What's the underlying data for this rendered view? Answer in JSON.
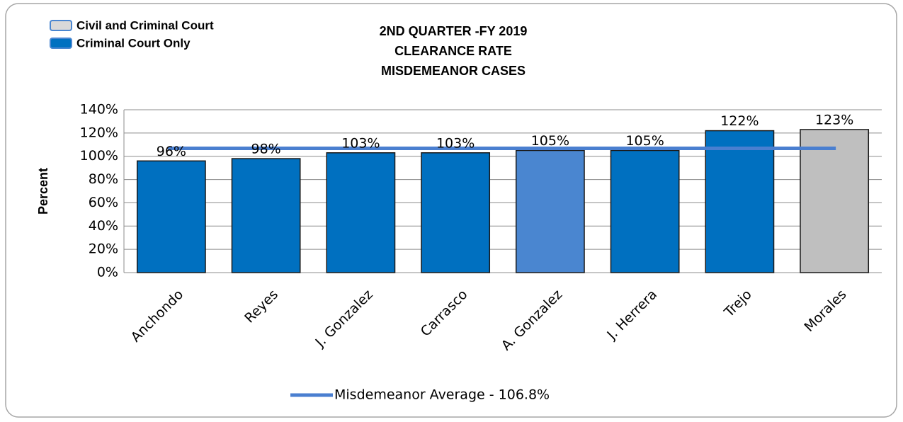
{
  "chart_data": {
    "type": "bar",
    "title": [
      "2ND QUARTER -FY 2019",
      "CLEARANCE RATE",
      "MISDEMEANOR CASES"
    ],
    "y_label": "Percent",
    "categories": [
      "Anchondo",
      "Reyes",
      "J. Gonzalez",
      "Carrasco",
      "A. Gonzalez",
      "J. Herrera",
      "Trejo",
      "Morales"
    ],
    "values": [
      96,
      98,
      103,
      103,
      105,
      105,
      122,
      123
    ],
    "value_labels": [
      "96%",
      "98%",
      "103%",
      "103%",
      "105%",
      "105%",
      "122%",
      "123%"
    ],
    "colors": [
      "#0070c0",
      "#0070c0",
      "#0070c0",
      "#0070c0",
      "#4a86d0",
      "#0070c0",
      "#0070c0",
      "#bfbfbf"
    ],
    "legend": [
      {
        "name": "Civil and Criminal Court",
        "color": "#d9d9d9"
      },
      {
        "name": "Criminal Court Only",
        "color": "#0070c0"
      }
    ],
    "average": {
      "name": "Misdemeanor Average - 106.8%",
      "value": 106.8,
      "color": "#4a7fd0"
    },
    "ylim": [
      0,
      140
    ],
    "yticks": [
      {
        "value": 0,
        "label": "0%"
      },
      {
        "value": 20,
        "label": "20%"
      },
      {
        "value": 40,
        "label": "40%"
      },
      {
        "value": 60,
        "label": "60%"
      },
      {
        "value": 80,
        "label": "80%"
      },
      {
        "value": 100,
        "label": "100%"
      },
      {
        "value": 120,
        "label": "120%"
      },
      {
        "value": 140,
        "label": "140%"
      }
    ],
    "grid": true
  }
}
